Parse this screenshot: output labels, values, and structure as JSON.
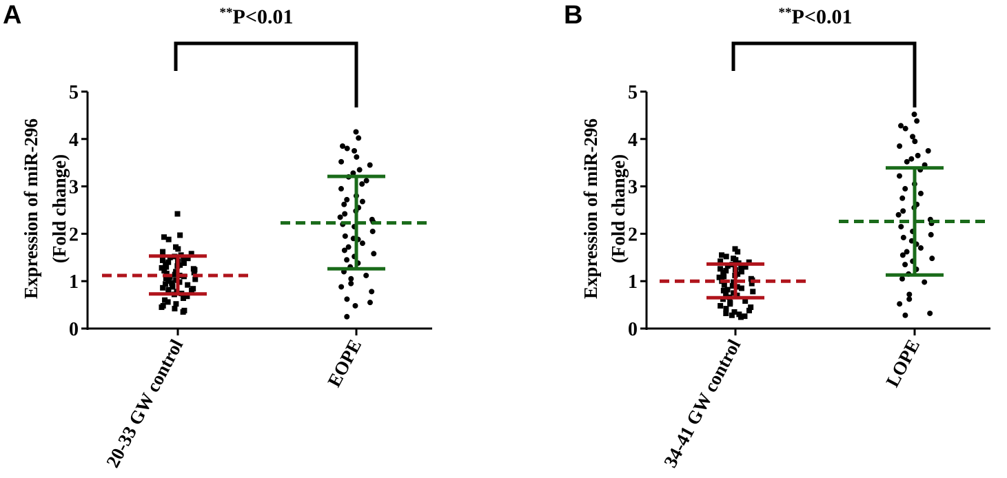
{
  "chart_data": [
    {
      "type": "scatter",
      "panel_label": "A",
      "significance": {
        "stars": "**",
        "text": "P<0.01"
      },
      "ylabel_line1": "Expression of miR-296",
      "ylabel_line2": "(Fold change)",
      "ylim": [
        0,
        5
      ],
      "yticks": [
        "0",
        "1",
        "2",
        "3",
        "4",
        "5"
      ],
      "categories": [
        "20-33 GW control",
        "EOPE"
      ],
      "groups": [
        {
          "name": "20-33 GW control",
          "marker": "square",
          "mean": 1.12,
          "error_low": 0.73,
          "error_high": 1.53,
          "color": "#b0141c",
          "values": [
            2.42,
            1.97,
            1.93,
            1.88,
            1.72,
            1.68,
            1.62,
            1.58,
            1.55,
            1.52,
            1.5,
            1.48,
            1.46,
            1.44,
            1.42,
            1.4,
            1.38,
            1.36,
            1.34,
            1.32,
            1.3,
            1.28,
            1.26,
            1.24,
            1.22,
            1.2,
            1.18,
            1.16,
            1.14,
            1.12,
            1.1,
            1.08,
            1.06,
            1.04,
            1.02,
            1.0,
            0.98,
            0.96,
            0.94,
            0.92,
            0.9,
            0.88,
            0.86,
            0.84,
            0.82,
            0.8,
            0.78,
            0.76,
            0.74,
            0.72,
            0.68,
            0.64,
            0.6,
            0.56,
            0.52,
            0.48,
            0.45,
            0.42,
            0.38,
            0.35
          ]
        },
        {
          "name": "EOPE",
          "marker": "circle",
          "mean": 2.23,
          "error_low": 1.26,
          "error_high": 3.21,
          "color": "#1a6b1a",
          "values": [
            4.15,
            4.02,
            3.85,
            3.8,
            3.75,
            3.62,
            3.52,
            3.45,
            3.35,
            3.28,
            3.2,
            3.12,
            3.05,
            2.95,
            2.8,
            2.72,
            2.68,
            2.62,
            2.55,
            2.48,
            2.42,
            2.35,
            2.3,
            2.25,
            2.2,
            2.15,
            2.05,
            1.95,
            1.9,
            1.88,
            1.8,
            1.72,
            1.65,
            1.58,
            1.52,
            1.45,
            1.38,
            1.3,
            1.2,
            1.12,
            1.05,
            0.95,
            0.88,
            0.78,
            0.62,
            0.55,
            0.48,
            0.25
          ]
        }
      ]
    },
    {
      "type": "scatter",
      "panel_label": "B",
      "significance": {
        "stars": "**",
        "text": "P<0.01"
      },
      "ylabel_line1": "Expression of miR-296",
      "ylabel_line2": "(Fold change)",
      "ylim": [
        0,
        5
      ],
      "yticks": [
        "0",
        "1",
        "2",
        "3",
        "4",
        "5"
      ],
      "categories": [
        "34-41 GW control",
        "LOPE"
      ],
      "groups": [
        {
          "name": "34-41 GW control",
          "marker": "square",
          "mean": 1.0,
          "error_low": 0.65,
          "error_high": 1.36,
          "color": "#b0141c",
          "values": [
            1.68,
            1.62,
            1.55,
            1.52,
            1.48,
            1.45,
            1.42,
            1.4,
            1.38,
            1.35,
            1.32,
            1.3,
            1.28,
            1.26,
            1.24,
            1.22,
            1.2,
            1.18,
            1.15,
            1.12,
            1.1,
            1.08,
            1.05,
            1.02,
            1.0,
            0.98,
            0.95,
            0.92,
            0.9,
            0.88,
            0.85,
            0.82,
            0.8,
            0.78,
            0.75,
            0.72,
            0.7,
            0.66,
            0.62,
            0.58,
            0.55,
            0.52,
            0.48,
            0.45,
            0.42,
            0.38,
            0.35,
            0.32,
            0.3,
            0.28,
            0.26,
            0.24
          ]
        },
        {
          "name": "LOPE",
          "marker": "circle",
          "mean": 2.26,
          "error_low": 1.13,
          "error_high": 3.39,
          "color": "#1a6b1a",
          "values": [
            4.52,
            4.38,
            4.28,
            4.22,
            4.05,
            3.95,
            3.85,
            3.75,
            3.65,
            3.58,
            3.52,
            3.45,
            3.35,
            3.22,
            3.05,
            2.95,
            2.85,
            2.75,
            2.62,
            2.55,
            2.48,
            2.4,
            2.3,
            2.22,
            2.15,
            2.05,
            1.98,
            1.92,
            1.85,
            1.78,
            1.7,
            1.62,
            1.55,
            1.48,
            1.42,
            1.35,
            1.25,
            1.15,
            1.05,
            0.98,
            0.72,
            0.62,
            0.52,
            0.32,
            0.28
          ]
        }
      ]
    }
  ]
}
